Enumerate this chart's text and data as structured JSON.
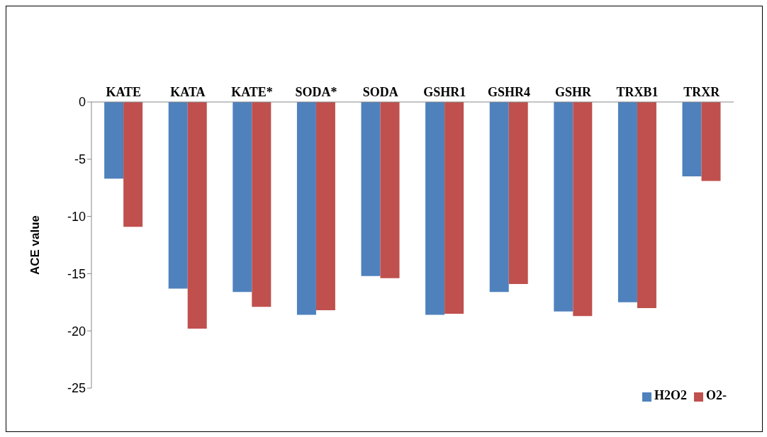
{
  "chart_data": {
    "type": "bar",
    "ylabel": "ACE value",
    "categories": [
      "KATE",
      "KATA",
      "KATE*",
      "SODA*",
      "SODA",
      "GSHR1",
      "GSHR4",
      "GSHR",
      "TRXB1",
      "TRXR"
    ],
    "series": [
      {
        "name": "H2O2",
        "color": "#4f81bd",
        "values": [
          -6.7,
          -16.3,
          -16.6,
          -18.6,
          -15.2,
          -18.6,
          -16.6,
          -18.3,
          -17.5,
          -6.5
        ]
      },
      {
        "name": "O2-",
        "color": "#c0504d",
        "values": [
          -10.9,
          -19.8,
          -17.9,
          -18.2,
          -15.4,
          -18.5,
          -15.9,
          -18.7,
          -18.0,
          -6.9
        ]
      }
    ],
    "ylim": [
      -25,
      0
    ],
    "yticks": [
      0,
      -5,
      -10,
      -15,
      -20,
      -25
    ],
    "grid": false,
    "legend": "bottom right"
  }
}
